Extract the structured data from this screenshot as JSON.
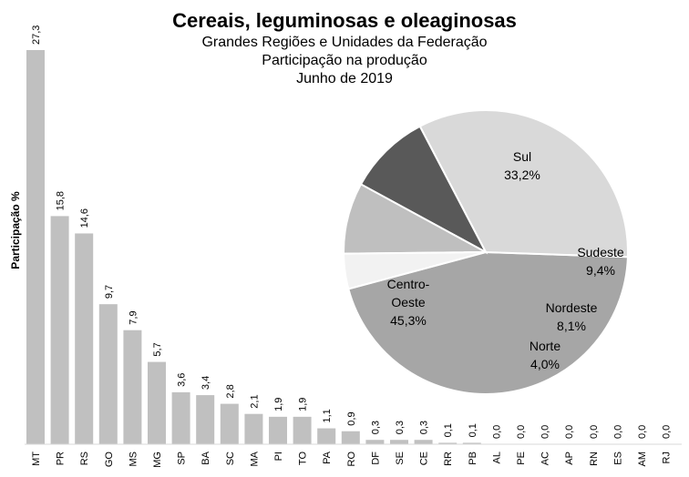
{
  "chart_data": [
    {
      "type": "bar",
      "title": "Cereais, leguminosas e oleaginosas",
      "subtitle": [
        "Grandes Regiões e Unidades da Federação",
        "Participação na produção",
        "Junho de 2019"
      ],
      "ylabel": "Participação %",
      "xlabel": "",
      "ylim": [
        0,
        27.3
      ],
      "grid": false,
      "bar_color": "#c0c0c0",
      "categories": [
        "MT",
        "PR",
        "RS",
        "GO",
        "MS",
        "MG",
        "SP",
        "BA",
        "SC",
        "MA",
        "PI",
        "TO",
        "PA",
        "RO",
        "DF",
        "SE",
        "CE",
        "RR",
        "PB",
        "AL",
        "PE",
        "AC",
        "AP",
        "RN",
        "ES",
        "AM",
        "RJ"
      ],
      "values": [
        27.3,
        15.8,
        14.6,
        9.7,
        7.9,
        5.7,
        3.6,
        3.4,
        2.8,
        2.1,
        1.9,
        1.9,
        1.1,
        0.9,
        0.3,
        0.3,
        0.3,
        0.1,
        0.1,
        0.0,
        0.0,
        0.0,
        0.0,
        0.0,
        0.0,
        0.0,
        0.0
      ],
      "value_labels": [
        "27,3",
        "15,8",
        "14,6",
        "9,7",
        "7,9",
        "5,7",
        "3,6",
        "3,4",
        "2,8",
        "2,1",
        "1,9",
        "1,9",
        "1,1",
        "0,9",
        "0,3",
        "0,3",
        "0,3",
        "0,1",
        "0,1",
        "0,0",
        "0,0",
        "0,0",
        "0,0",
        "0,0",
        "0,0",
        "0,0",
        "0,0"
      ]
    },
    {
      "type": "pie",
      "slices": [
        {
          "name": "Centro-",
          "name2": "Oeste",
          "value": 45.3,
          "label": "45,3%",
          "color": "#a6a6a6"
        },
        {
          "name": "Sul",
          "name2": "",
          "value": 33.2,
          "label": "33,2%",
          "color": "#d9d9d9"
        },
        {
          "name": "Sudeste",
          "name2": "",
          "value": 9.4,
          "label": "9,4%",
          "color": "#595959"
        },
        {
          "name": "Nordeste",
          "name2": "",
          "value": 8.1,
          "label": "8,1%",
          "color": "#bfbfbf"
        },
        {
          "name": "Norte",
          "name2": "",
          "value": 4.0,
          "label": "4,0%",
          "color": "#f2f2f2"
        }
      ]
    }
  ]
}
